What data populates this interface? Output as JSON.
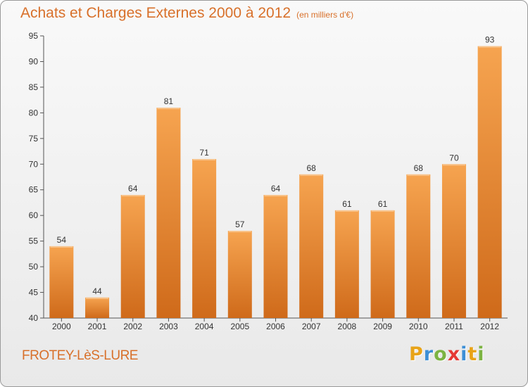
{
  "title": "Achats et Charges Externes 2000 à 2012",
  "subtitle": "(en milliers d'€)",
  "town": "FROTEY-LèS-LURE",
  "logo": {
    "letters": [
      "P",
      "r",
      "o",
      "x",
      "i",
      "t",
      "i"
    ],
    "colors": [
      "#e8a317",
      "#3d8fd6",
      "#7cb342",
      "#e53935",
      "#3d8fd6",
      "#e8a317",
      "#7cb342"
    ]
  },
  "colors": {
    "accent": "#d8702a",
    "bar_top": "#f6a450",
    "bar_bottom": "#cf6a1a",
    "grid": "#c9c9c9"
  },
  "chart_data": {
    "type": "bar",
    "categories": [
      "2000",
      "2001",
      "2002",
      "2003",
      "2004",
      "2005",
      "2006",
      "2007",
      "2008",
      "2009",
      "2010",
      "2011",
      "2012"
    ],
    "values": [
      54,
      44,
      64,
      81,
      71,
      57,
      64,
      68,
      61,
      61,
      68,
      70,
      93
    ],
    "ylim": [
      40,
      95
    ],
    "yticks": [
      40,
      45,
      50,
      55,
      60,
      65,
      70,
      75,
      80,
      85,
      90,
      95
    ],
    "grid": false,
    "xlabel": "",
    "ylabel": ""
  }
}
